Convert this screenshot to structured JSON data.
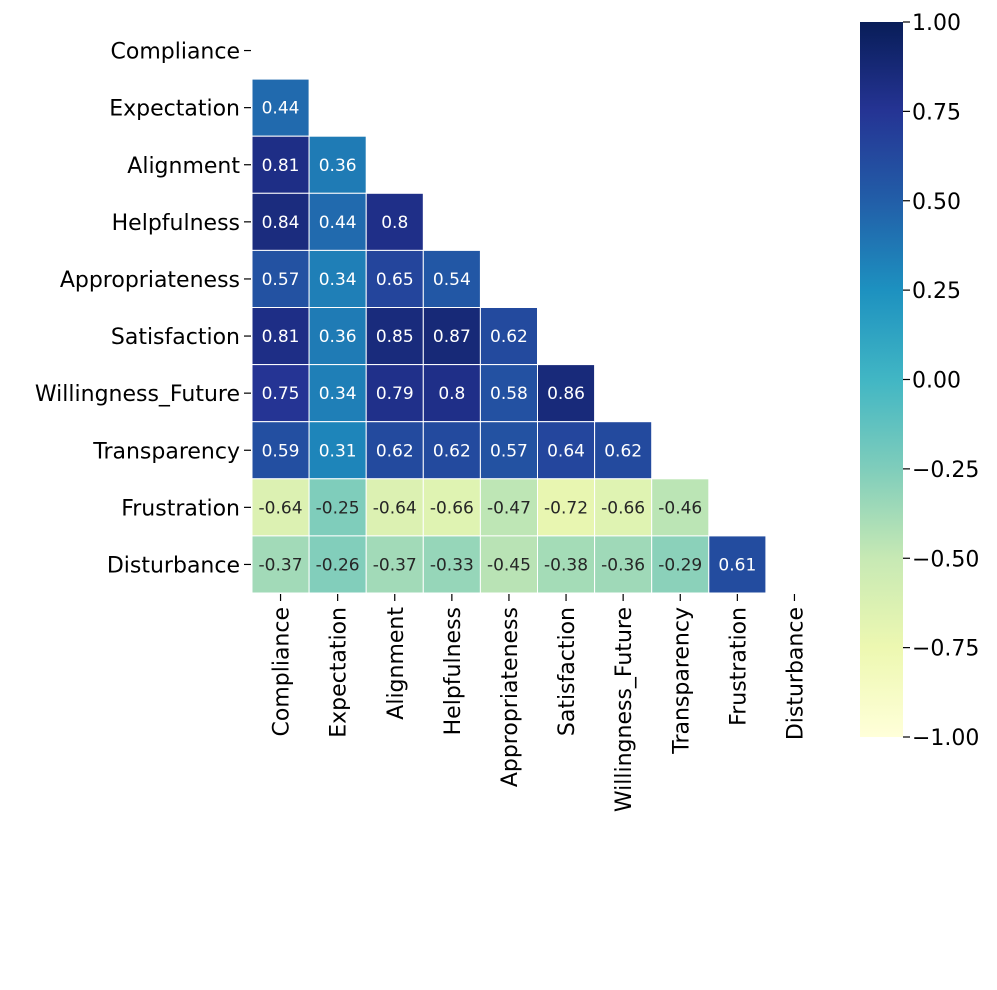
{
  "chart_data": {
    "type": "heatmap",
    "title": "",
    "xlabel": "",
    "ylabel": "",
    "variables": [
      "Compliance",
      "Expectation",
      "Alignment",
      "Helpfulness",
      "Appropriateness",
      "Satisfaction",
      "Willingness_Future",
      "Transparency",
      "Frustration",
      "Disturbance"
    ],
    "mask": "upper-triangle-and-diagonal",
    "matrix": [
      [
        null,
        null,
        null,
        null,
        null,
        null,
        null,
        null,
        null,
        null
      ],
      [
        0.44,
        null,
        null,
        null,
        null,
        null,
        null,
        null,
        null,
        null
      ],
      [
        0.81,
        0.36,
        null,
        null,
        null,
        null,
        null,
        null,
        null,
        null
      ],
      [
        0.84,
        0.44,
        0.8,
        null,
        null,
        null,
        null,
        null,
        null,
        null
      ],
      [
        0.57,
        0.34,
        0.65,
        0.54,
        null,
        null,
        null,
        null,
        null,
        null
      ],
      [
        0.81,
        0.36,
        0.85,
        0.87,
        0.62,
        null,
        null,
        null,
        null,
        null
      ],
      [
        0.75,
        0.34,
        0.79,
        0.8,
        0.58,
        0.86,
        null,
        null,
        null,
        null
      ],
      [
        0.59,
        0.31,
        0.62,
        0.62,
        0.57,
        0.64,
        0.62,
        null,
        null,
        null
      ],
      [
        -0.64,
        -0.25,
        -0.64,
        -0.66,
        -0.47,
        -0.72,
        -0.66,
        -0.46,
        null,
        null
      ],
      [
        -0.37,
        -0.26,
        -0.37,
        -0.33,
        -0.45,
        -0.38,
        -0.36,
        -0.29,
        0.61,
        null
      ]
    ],
    "value_labels": [
      [
        null,
        null,
        null,
        null,
        null,
        null,
        null,
        null,
        null,
        null
      ],
      [
        "0.44",
        null,
        null,
        null,
        null,
        null,
        null,
        null,
        null,
        null
      ],
      [
        "0.81",
        "0.36",
        null,
        null,
        null,
        null,
        null,
        null,
        null,
        null
      ],
      [
        "0.84",
        "0.44",
        "0.8",
        null,
        null,
        null,
        null,
        null,
        null,
        null
      ],
      [
        "0.57",
        "0.34",
        "0.65",
        "0.54",
        null,
        null,
        null,
        null,
        null,
        null
      ],
      [
        "0.81",
        "0.36",
        "0.85",
        "0.87",
        "0.62",
        null,
        null,
        null,
        null,
        null
      ],
      [
        "0.75",
        "0.34",
        "0.79",
        "0.8",
        "0.58",
        "0.86",
        null,
        null,
        null,
        null
      ],
      [
        "0.59",
        "0.31",
        "0.62",
        "0.62",
        "0.57",
        "0.64",
        "0.62",
        null,
        null,
        null
      ],
      [
        "-0.64",
        "-0.25",
        "-0.64",
        "-0.66",
        "-0.47",
        "-0.72",
        "-0.66",
        "-0.46",
        null,
        null
      ],
      [
        "-0.37",
        "-0.26",
        "-0.37",
        "-0.33",
        "-0.45",
        "-0.38",
        "-0.36",
        "-0.29",
        "0.61",
        null
      ]
    ],
    "colorscale": "YlGnBu",
    "colorscale_stops": [
      {
        "value": -1.0,
        "color": "#ffffd9"
      },
      {
        "value": -0.75,
        "color": "#edf8b1"
      },
      {
        "value": -0.5,
        "color": "#c7e9b4"
      },
      {
        "value": -0.25,
        "color": "#7fcdbb"
      },
      {
        "value": 0.0,
        "color": "#41b6c4"
      },
      {
        "value": 0.25,
        "color": "#1d91c0"
      },
      {
        "value": 0.5,
        "color": "#225ea8"
      },
      {
        "value": 0.75,
        "color": "#253494"
      },
      {
        "value": 1.0,
        "color": "#081d58"
      }
    ],
    "vmin": -1.0,
    "vmax": 1.0,
    "colorbar_ticks": [
      "1.00",
      "0.75",
      "0.50",
      "0.25",
      "0.00",
      "−0.25",
      "−0.50",
      "−0.75",
      "−1.00"
    ],
    "colorbar_tick_values": [
      1.0,
      0.75,
      0.5,
      0.25,
      0.0,
      -0.25,
      -0.5,
      -0.75,
      -1.0
    ],
    "grid": true,
    "legend": "colorbar-right"
  }
}
